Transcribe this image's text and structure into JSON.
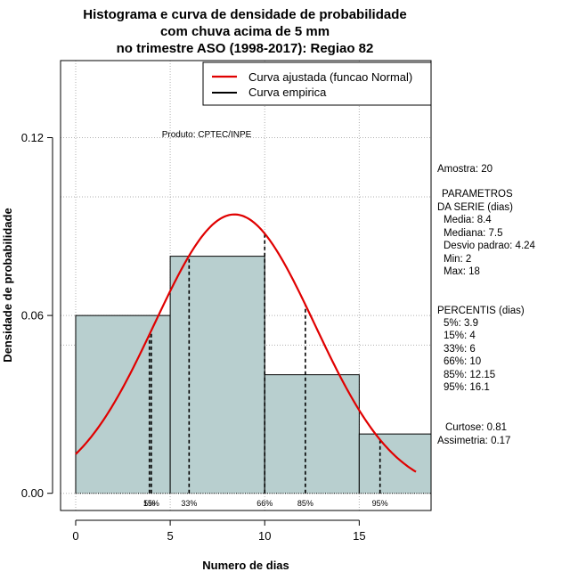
{
  "chart_data": {
    "type": "bar",
    "title_lines": [
      "Histograma e curva de densidade de probabilidade",
      "com chuva acima de 5 mm",
      "no trimestre ASO (1998-2017): Regiao 82"
    ],
    "xlabel": "Numero de dias",
    "ylabel": "Densidade de probabilidade",
    "xlim": [
      -0.8,
      18.8
    ],
    "ylim": [
      -0.0058,
      0.146
    ],
    "xticks": [
      0,
      5,
      10,
      15
    ],
    "xtick_labels": [
      "0",
      "5",
      "10",
      "15"
    ],
    "yticks": [
      0.0,
      0.06,
      0.12
    ],
    "ytick_labels": [
      "0.00",
      "0.06",
      "0.12"
    ],
    "grid": true,
    "grid_y_extra": [
      0.1,
      0.05
    ],
    "bins": [
      {
        "x0": 0,
        "x1": 5,
        "density": 0.06
      },
      {
        "x0": 5,
        "x1": 10,
        "density": 0.08
      },
      {
        "x0": 10,
        "x1": 15,
        "density": 0.04
      },
      {
        "x0": 15,
        "x1": 18.8,
        "density": 0.02
      }
    ],
    "bar_color": "#b8cfcf",
    "normal_curve": {
      "mean": 8.4,
      "sd": 4.24,
      "x_from": 0,
      "x_to": 18,
      "color": "#e00000"
    },
    "percentile_lines": [
      {
        "label": "5%",
        "x": 3.9
      },
      {
        "label": "15%",
        "x": 4
      },
      {
        "label": "33%",
        "x": 6
      },
      {
        "label": "66%",
        "x": 10
      },
      {
        "label": "85%",
        "x": 12.15
      },
      {
        "label": "95%",
        "x": 16.1
      }
    ],
    "legend": {
      "position": "top-right",
      "entries": [
        {
          "label": "Curva ajustada (funcao Normal)",
          "color": "#e00000"
        },
        {
          "label": "Curva empirica",
          "color": "#000000"
        }
      ]
    },
    "product_label": "Produto: CPTEC/INPE"
  },
  "side_panel": {
    "amostra": "Amostra: 20",
    "params_title_1": "PARAMETROS",
    "params_title_2": "DA SERIE (dias)",
    "media": "Media: 8.4",
    "mediana": "Mediana: 7.5",
    "desvio": "Desvio padrao: 4.24",
    "min": "Min: 2",
    "max": "Max: 18",
    "percentis_title": "PERCENTIS (dias)",
    "p5": "5%: 3.9",
    "p15": "15%: 4",
    "p33": "33%: 6",
    "p66": "66%: 10",
    "p85": "85%: 12.15",
    "p95": "95%: 16.1",
    "curtose": "Curtose: 0.81",
    "assimetria": "Assimetria: 0.17"
  }
}
